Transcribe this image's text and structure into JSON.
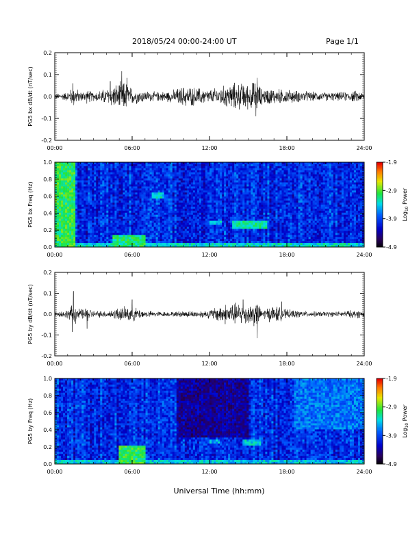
{
  "header": {
    "title": "2018/05/24  00:00-24:00 UT",
    "page": "Page 1/1"
  },
  "xlabel": "Universal Time (hh:mm)",
  "colorbar": {
    "label_prefix": "Log",
    "label_sub": "10",
    "label_suffix": " Power",
    "ticks": [
      "-1.9",
      "-2.9",
      "-3.9",
      "-4.9"
    ]
  },
  "chart_data": [
    {
      "type": "line",
      "ylabel": "PG5 bx dB/dt (nT/sec)",
      "ylim": [
        -0.2,
        0.2
      ],
      "yticks": [
        "0.2",
        "0.1",
        "0.0",
        "-0.1",
        "-0.2"
      ],
      "xticks": [
        "00:00",
        "06:00",
        "12:00",
        "18:00",
        "24:00"
      ],
      "xlim_hours": [
        0,
        24
      ],
      "grid": false,
      "series_color": "#000000",
      "activity_envelope": [
        {
          "hour": 0,
          "amp": 0.012
        },
        {
          "hour": 1,
          "amp": 0.02
        },
        {
          "hour": 1.5,
          "amp": 0.045
        },
        {
          "hour": 2,
          "amp": 0.02
        },
        {
          "hour": 2.5,
          "amp": 0.03
        },
        {
          "hour": 3,
          "amp": 0.02
        },
        {
          "hour": 4,
          "amp": 0.035
        },
        {
          "hour": 5,
          "amp": 0.06
        },
        {
          "hour": 5.5,
          "amp": 0.065
        },
        {
          "hour": 6,
          "amp": 0.035
        },
        {
          "hour": 7,
          "amp": 0.025
        },
        {
          "hour": 8,
          "amp": 0.02
        },
        {
          "hour": 9,
          "amp": 0.025
        },
        {
          "hour": 9.5,
          "amp": 0.035
        },
        {
          "hour": 10,
          "amp": 0.045
        },
        {
          "hour": 11,
          "amp": 0.04
        },
        {
          "hour": 12,
          "amp": 0.03
        },
        {
          "hour": 13,
          "amp": 0.045
        },
        {
          "hour": 14,
          "amp": 0.06
        },
        {
          "hour": 15,
          "amp": 0.055
        },
        {
          "hour": 15.7,
          "amp": 0.07
        },
        {
          "hour": 16,
          "amp": 0.035
        },
        {
          "hour": 17,
          "amp": 0.035
        },
        {
          "hour": 18,
          "amp": 0.03
        },
        {
          "hour": 19,
          "amp": 0.025
        },
        {
          "hour": 20,
          "amp": 0.02
        },
        {
          "hour": 22,
          "amp": 0.018
        },
        {
          "hour": 23.5,
          "amp": 0.025
        },
        {
          "hour": 24,
          "amp": 0.015
        }
      ],
      "spikes": [
        {
          "hour": 1.4,
          "value": 0.06
        },
        {
          "hour": 4.3,
          "value": 0.07
        },
        {
          "hour": 5.2,
          "value": 0.115
        },
        {
          "hour": 5.6,
          "value": 0.085
        },
        {
          "hour": 15.7,
          "value": 0.085
        },
        {
          "hour": 15.6,
          "value": -0.09
        }
      ]
    },
    {
      "type": "heatmap",
      "ylabel": "PG5 bx Freq (Hz)",
      "ylim": [
        0.0,
        1.0
      ],
      "yticks": [
        "1.0",
        "0.8",
        "0.6",
        "0.4",
        "0.2",
        "0.0"
      ],
      "xticks": [
        "00:00",
        "06:00",
        "12:00",
        "18:00",
        "24:00"
      ],
      "xlim_hours": [
        0,
        24
      ],
      "zlim": [
        -4.9,
        -1.9
      ],
      "zlabel": "Log10 Power",
      "background_level": -4.0,
      "features": [
        {
          "hour_start": 0.0,
          "hour_end": 1.6,
          "freq_start": 0.0,
          "freq_end": 1.0,
          "level": -3.0
        },
        {
          "hour_start": 1.6,
          "hour_end": 24.0,
          "freq_start": 0.0,
          "freq_end": 0.05,
          "level": -3.3
        },
        {
          "hour_start": 4.5,
          "hour_end": 7.0,
          "freq_start": 0.0,
          "freq_end": 0.15,
          "level": -3.1
        },
        {
          "hour_start": 7.5,
          "hour_end": 8.5,
          "freq_start": 0.58,
          "freq_end": 0.64,
          "level": -3.3
        },
        {
          "hour_start": 12.0,
          "hour_end": 13.0,
          "freq_start": 0.26,
          "freq_end": 0.31,
          "level": -3.4
        },
        {
          "hour_start": 13.8,
          "hour_end": 16.5,
          "freq_start": 0.21,
          "freq_end": 0.3,
          "level": -3.2
        }
      ]
    },
    {
      "type": "line",
      "ylabel": "PG5 by dB/dt (nT/sec)",
      "ylim": [
        -0.2,
        0.2
      ],
      "yticks": [
        "0.2",
        "0.1",
        "0.0",
        "-0.1",
        "-0.2"
      ],
      "xticks": [
        "00:00",
        "06:00",
        "12:00",
        "18:00",
        "24:00"
      ],
      "xlim_hours": [
        0,
        24
      ],
      "grid": false,
      "series_color": "#000000",
      "activity_envelope": [
        {
          "hour": 0,
          "amp": 0.01
        },
        {
          "hour": 1,
          "amp": 0.02
        },
        {
          "hour": 1.5,
          "amp": 0.05
        },
        {
          "hour": 2,
          "amp": 0.02
        },
        {
          "hour": 2.5,
          "amp": 0.035
        },
        {
          "hour": 3,
          "amp": 0.015
        },
        {
          "hour": 4,
          "amp": 0.015
        },
        {
          "hour": 5,
          "amp": 0.03
        },
        {
          "hour": 6,
          "amp": 0.035
        },
        {
          "hour": 7,
          "amp": 0.015
        },
        {
          "hour": 9,
          "amp": 0.01
        },
        {
          "hour": 10,
          "amp": 0.015
        },
        {
          "hour": 11,
          "amp": 0.015
        },
        {
          "hour": 12,
          "amp": 0.02
        },
        {
          "hour": 13,
          "amp": 0.045
        },
        {
          "hour": 14,
          "amp": 0.05
        },
        {
          "hour": 15,
          "amp": 0.045
        },
        {
          "hour": 15.7,
          "amp": 0.06
        },
        {
          "hour": 16,
          "amp": 0.02
        },
        {
          "hour": 17,
          "amp": 0.04
        },
        {
          "hour": 18,
          "amp": 0.02
        },
        {
          "hour": 20,
          "amp": 0.012
        },
        {
          "hour": 22,
          "amp": 0.012
        },
        {
          "hour": 23.5,
          "amp": 0.02
        },
        {
          "hour": 24,
          "amp": 0.012
        }
      ],
      "spikes": [
        {
          "hour": 1.45,
          "value": 0.11
        },
        {
          "hour": 1.35,
          "value": -0.085
        },
        {
          "hour": 2.5,
          "value": -0.07
        },
        {
          "hour": 6.0,
          "value": 0.07
        },
        {
          "hour": 14.6,
          "value": 0.07
        },
        {
          "hour": 15.7,
          "value": -0.115
        },
        {
          "hour": 17.6,
          "value": 0.06
        }
      ]
    },
    {
      "type": "heatmap",
      "ylabel": "PG5 by Freq (Hz)",
      "ylim": [
        0.0,
        1.0
      ],
      "yticks": [
        "1.0",
        "0.8",
        "0.6",
        "0.4",
        "0.2",
        "0.0"
      ],
      "xticks": [
        "00:00",
        "06:00",
        "12:00",
        "18:00",
        "24:00"
      ],
      "xlim_hours": [
        0,
        24
      ],
      "zlim": [
        -4.9,
        -1.9
      ],
      "zlabel": "Log10 Power",
      "background_level": -4.0,
      "features": [
        {
          "hour_start": 0.0,
          "hour_end": 24.0,
          "freq_start": 0.0,
          "freq_end": 0.04,
          "level": -3.4
        },
        {
          "hour_start": 5.0,
          "hour_end": 7.0,
          "freq_start": 0.0,
          "freq_end": 0.22,
          "level": -3.0
        },
        {
          "hour_start": 9.5,
          "hour_end": 15.0,
          "freq_start": 0.3,
          "freq_end": 1.0,
          "level": -4.4
        },
        {
          "hour_start": 12.0,
          "hour_end": 12.8,
          "freq_start": 0.24,
          "freq_end": 0.29,
          "level": -3.5
        },
        {
          "hour_start": 14.5,
          "hour_end": 16.0,
          "freq_start": 0.22,
          "freq_end": 0.28,
          "level": -3.4
        },
        {
          "hour_start": 18.5,
          "hour_end": 24.0,
          "freq_start": 0.4,
          "freq_end": 1.0,
          "level": -3.7
        }
      ]
    }
  ]
}
